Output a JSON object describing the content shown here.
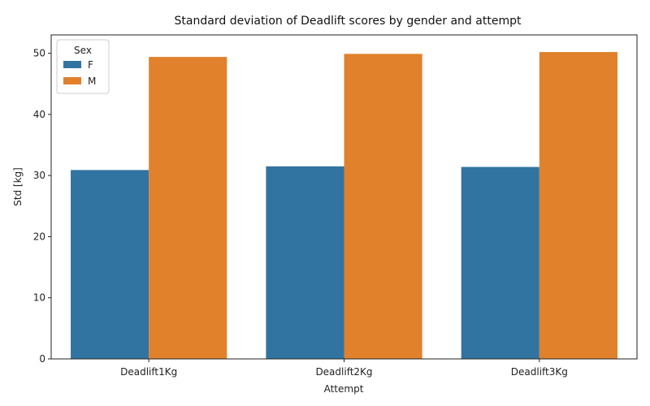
{
  "chart_data": {
    "type": "bar",
    "title": "Standard deviation of Deadlift scores by gender and attempt",
    "xlabel": "Attempt",
    "ylabel": "Std [kg]",
    "categories": [
      "Deadlift1Kg",
      "Deadlift2Kg",
      "Deadlift3Kg"
    ],
    "series": [
      {
        "name": "F",
        "color": "#3274a1",
        "values": [
          30.9,
          31.5,
          31.4
        ]
      },
      {
        "name": "M",
        "color": "#e1812c",
        "values": [
          49.4,
          49.9,
          50.2
        ]
      }
    ],
    "ylim": [
      0,
      53
    ],
    "yticks": [
      0,
      10,
      20,
      30,
      40,
      50
    ],
    "grid": false,
    "legend": {
      "title": "Sex",
      "placement": "top-left"
    }
  }
}
